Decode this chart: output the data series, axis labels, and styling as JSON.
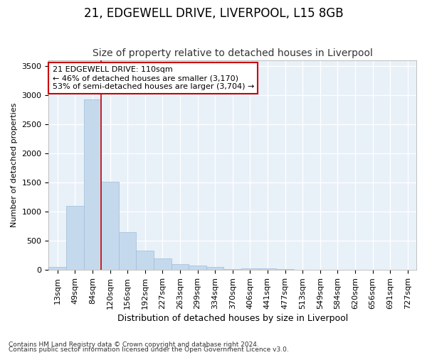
{
  "title": "21, EDGEWELL DRIVE, LIVERPOOL, L15 8GB",
  "subtitle": "Size of property relative to detached houses in Liverpool",
  "xlabel": "Distribution of detached houses by size in Liverpool",
  "ylabel": "Number of detached properties",
  "categories": [
    "13sqm",
    "49sqm",
    "84sqm",
    "120sqm",
    "156sqm",
    "192sqm",
    "227sqm",
    "263sqm",
    "299sqm",
    "334sqm",
    "370sqm",
    "406sqm",
    "441sqm",
    "477sqm",
    "513sqm",
    "549sqm",
    "584sqm",
    "620sqm",
    "656sqm",
    "691sqm",
    "727sqm"
  ],
  "values": [
    50,
    1100,
    2920,
    1510,
    650,
    330,
    200,
    100,
    80,
    50,
    20,
    30,
    25,
    10,
    0,
    0,
    0,
    0,
    0,
    0,
    0
  ],
  "bar_color": "#c5d9ed",
  "bar_edge_color": "#a0bcd8",
  "vline_x": 2.5,
  "vline_color": "#cc0000",
  "annotation_text": "21 EDGEWELL DRIVE: 110sqm\n← 46% of detached houses are smaller (3,170)\n53% of semi-detached houses are larger (3,704) →",
  "annotation_box_color": "#ffffff",
  "annotation_box_edge": "#cc0000",
  "ylim": [
    0,
    3600
  ],
  "yticks": [
    0,
    500,
    1000,
    1500,
    2000,
    2500,
    3000,
    3500
  ],
  "background_color": "#ffffff",
  "plot_bg_color": "#e8f0f8",
  "grid_color": "#ffffff",
  "footer1": "Contains HM Land Registry data © Crown copyright and database right 2024.",
  "footer2": "Contains public sector information licensed under the Open Government Licence v3.0.",
  "title_fontsize": 12,
  "subtitle_fontsize": 10,
  "xlabel_fontsize": 9,
  "ylabel_fontsize": 8,
  "tick_fontsize": 8,
  "annotation_fontsize": 8
}
